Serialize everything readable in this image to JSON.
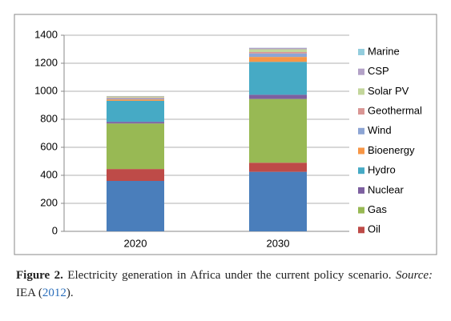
{
  "chart_data": {
    "type": "stacked_bar",
    "categories": [
      "2020",
      "2030"
    ],
    "series": [
      {
        "color": "#4a7ebb",
        "values": [
          360,
          425
        ]
      },
      {
        "name": "Oil",
        "color": "#be4b48",
        "values": [
          85,
          65
        ]
      },
      {
        "name": "Gas",
        "color": "#98b954",
        "values": [
          325,
          455
        ]
      },
      {
        "name": "Nuclear",
        "color": "#7d60a0",
        "values": [
          12,
          30
        ]
      },
      {
        "name": "Hydro",
        "color": "#46aac5",
        "values": [
          150,
          235
        ]
      },
      {
        "name": "Bioenergy",
        "color": "#f79646",
        "values": [
          10,
          35
        ]
      },
      {
        "name": "Wind",
        "color": "#8da5d4",
        "values": [
          8,
          25
        ]
      },
      {
        "name": "Geothermal",
        "color": "#d99694",
        "values": [
          5,
          10
        ]
      },
      {
        "name": "Solar PV",
        "color": "#c3d69b",
        "values": [
          8,
          20
        ]
      },
      {
        "name": "CSP",
        "color": "#b3a2c7",
        "values": [
          3,
          10
        ]
      },
      {
        "name": "Marine",
        "color": "#93cddd",
        "values": [
          0,
          1
        ]
      }
    ],
    "ylim": [
      0,
      1400
    ],
    "yticks": [
      0,
      200,
      400,
      600,
      800,
      1000,
      1200,
      1400
    ],
    "grid": true
  },
  "caption": {
    "label": "Figure 2.",
    "text": "Electricity generation in Africa under the current policy scenario.",
    "source_label": "Source:",
    "source": "IEA (",
    "year": "2012",
    "end": ")."
  }
}
